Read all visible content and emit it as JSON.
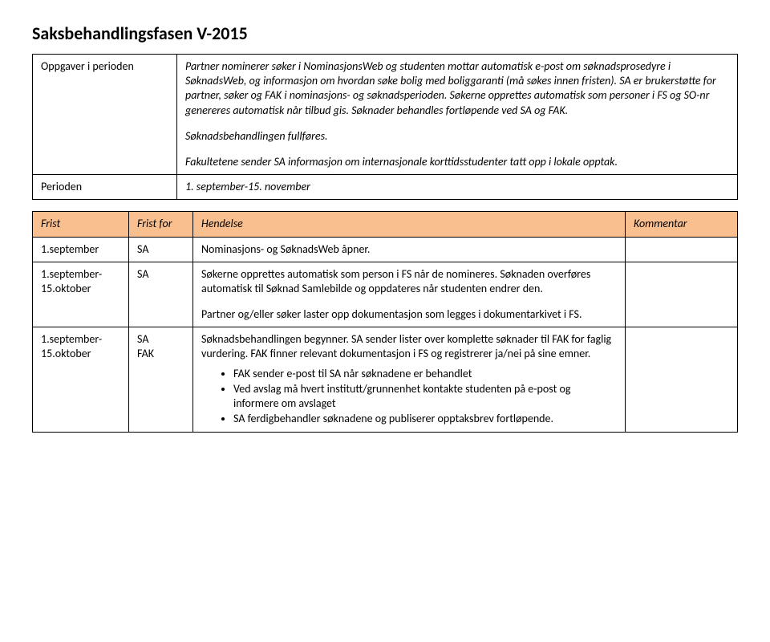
{
  "title": "Saksbehandlingsfasen V-2015",
  "headTable": {
    "row1": {
      "label": "Oppgaver i perioden",
      "p1": "Partner nominerer søker i NominasjonsWeb og studenten mottar automatisk e-post om søknadsprosedyre i SøknadsWeb, og informasjon om hvordan søke bolig med boliggaranti (må søkes innen fristen). SA er brukerstøtte for partner, søker og FAK i nominasjons- og søknadsperioden. Søkerne opprettes automatisk som personer i FS og SO-nr genereres automatisk når tilbud gis. Søknader behandles fortløpende ved SA og FAK.",
      "p2": "Søknadsbehandlingen fullføres.",
      "p3": "Fakultetene sender SA informasjon om internasjonale korttidsstudenter tatt opp i lokale opptak."
    },
    "row2": {
      "label": "Perioden",
      "value": "1. september-15. november"
    }
  },
  "schedule": {
    "headers": {
      "c1": "Frist",
      "c2": "Frist for",
      "c3": "Hendelse",
      "c4": "Kommentar"
    },
    "r1": {
      "c1": "1.september",
      "c2": "SA",
      "c3": "Nominasjons- og SøknadsWeb åpner.",
      "c4": ""
    },
    "r2": {
      "c1": "1.september-15.oktober",
      "c2": "SA",
      "c3p1": "Søkerne opprettes automatisk som person i FS når de nomineres. Søknaden overføres automatisk til Søknad Samlebilde og oppdateres når studenten endrer den.",
      "c3p2": "Partner og/eller søker laster opp dokumentasjon som legges i dokumentarkivet i FS.",
      "c4": ""
    },
    "r3": {
      "c1": "1.september-15.oktober",
      "c2a": "SA",
      "c2b": "FAK",
      "c3p1": "Søknadsbehandlingen begynner. SA sender lister over komplette søknader til FAK for faglig vurdering. FAK finner relevant dokumentasjon i FS og registrerer ja/nei på sine emner.",
      "c3b1": "FAK sender e-post til SA når søknadene er behandlet",
      "c3b2": "Ved avslag må hvert institutt/grunnenhet kontakte studenten på e-post og informere om avslaget",
      "c3b3": "SA ferdigbehandler søknadene og publiserer opptaksbrev fortløpende.",
      "c4": ""
    }
  }
}
